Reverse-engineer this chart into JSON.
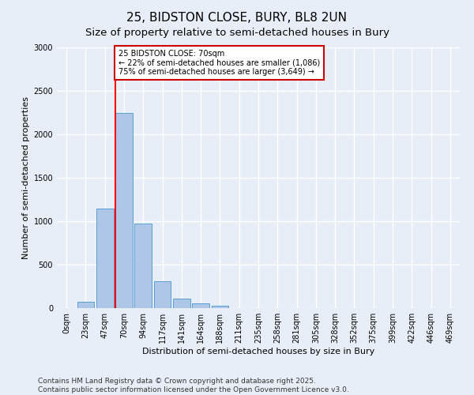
{
  "title_line1": "25, BIDSTON CLOSE, BURY, BL8 2UN",
  "title_line2": "Size of property relative to semi-detached houses in Bury",
  "xlabel": "Distribution of semi-detached houses by size in Bury",
  "ylabel": "Number of semi-detached properties",
  "bar_labels": [
    "0sqm",
    "23sqm",
    "47sqm",
    "70sqm",
    "94sqm",
    "117sqm",
    "141sqm",
    "164sqm",
    "188sqm",
    "211sqm",
    "235sqm",
    "258sqm",
    "281sqm",
    "305sqm",
    "328sqm",
    "352sqm",
    "375sqm",
    "399sqm",
    "422sqm",
    "446sqm",
    "469sqm"
  ],
  "bar_values": [
    0,
    70,
    1145,
    2250,
    975,
    305,
    110,
    55,
    30,
    0,
    0,
    0,
    0,
    0,
    0,
    0,
    0,
    0,
    0,
    0,
    0
  ],
  "bar_color": "#aec6e8",
  "bar_edgecolor": "#5a9fd4",
  "red_line_x": 3,
  "annotation_text": "25 BIDSTON CLOSE: 70sqm\n← 22% of semi-detached houses are smaller (1,086)\n75% of semi-detached houses are larger (3,649) →",
  "annotation_box_color": "#ffffff",
  "annotation_box_edgecolor": "#cc0000",
  "ylim": [
    0,
    3000
  ],
  "yticks": [
    0,
    500,
    1000,
    1500,
    2000,
    2500,
    3000
  ],
  "background_color": "#e8eef8",
  "grid_color": "#ffffff",
  "footer_line1": "Contains HM Land Registry data © Crown copyright and database right 2025.",
  "footer_line2": "Contains public sector information licensed under the Open Government Licence v3.0.",
  "title_fontsize": 11,
  "subtitle_fontsize": 9.5,
  "label_fontsize": 8,
  "tick_fontsize": 7,
  "footer_fontsize": 6.5
}
